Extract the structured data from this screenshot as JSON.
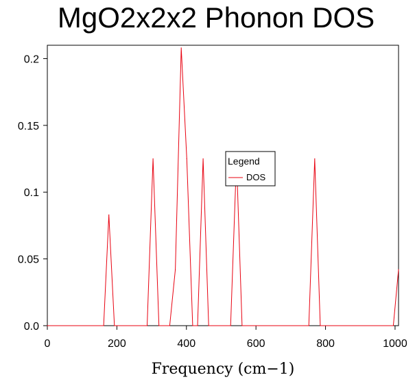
{
  "chart_data": {
    "type": "line",
    "title": "MgO2x2x2 Phonon DOS",
    "xlabel": "Frequency (cm−1)",
    "ylabel": "",
    "xlim": [
      0,
      1010
    ],
    "ylim": [
      0,
      0.21
    ],
    "xticks": [
      0,
      200,
      400,
      600,
      800,
      1000
    ],
    "xtick_labels": [
      "0",
      "200",
      "400",
      "600",
      "800",
      "1000"
    ],
    "yticks": [
      0,
      0.05,
      0.1,
      0.15,
      0.2
    ],
    "ytick_labels": [
      "0.0",
      "0.05",
      "0.1",
      "0.15",
      "0.2"
    ],
    "grid": false,
    "legend": {
      "title": "Legend",
      "placement": "center-right"
    },
    "series": [
      {
        "name": "DOS",
        "color": "#e8000f",
        "x": [
          0,
          162,
          177,
          193,
          287,
          304,
          321,
          352,
          368,
          385,
          401,
          418,
          432,
          448,
          464,
          527,
          544,
          560,
          752,
          769,
          785,
          995,
          1010
        ],
        "y": [
          0,
          0,
          0.083,
          0,
          0,
          0.125,
          0,
          0,
          0.042,
          0.208,
          0.125,
          0,
          0,
          0.125,
          0,
          0,
          0.125,
          0,
          0,
          0.125,
          0,
          0,
          0.042
        ]
      }
    ]
  }
}
